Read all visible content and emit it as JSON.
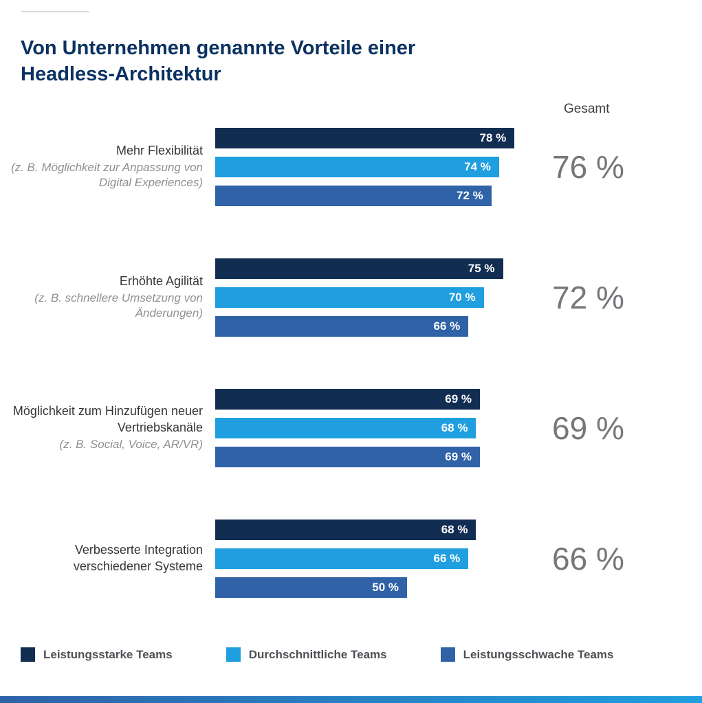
{
  "page": {
    "title": "Von Unternehmen genannte Vorteile einer Headless-Architektur",
    "gesamt_header": "Gesamt"
  },
  "chart_data": {
    "type": "bar",
    "orientation": "horizontal",
    "title": "Von Unternehmen genannte Vorteile einer Headless-Architektur",
    "xlim": [
      0,
      100
    ],
    "legend_position": "bottom",
    "series": [
      "Leistungsstarke Teams",
      "Durchschnittliche Teams",
      "Leistungsschwache Teams"
    ],
    "series_colors": [
      "#122d52",
      "#1f9fdf",
      "#2f62a7"
    ],
    "total_column_label": "Gesamt",
    "groups": [
      {
        "label": "Mehr Flexibilität",
        "sublabel": "(z. B. Möglichkeit zur Anpassung von Digital Experiences)",
        "values": [
          78,
          74,
          72
        ],
        "value_labels": [
          "78 %",
          "74 %",
          "72 %"
        ],
        "total": "76 %"
      },
      {
        "label": "Erhöhte Agilität",
        "sublabel": "(z. B. schnellere Umsetzung von Änderungen)",
        "values": [
          75,
          70,
          66
        ],
        "value_labels": [
          "75 %",
          "70 %",
          "66 %"
        ],
        "total": "72 %"
      },
      {
        "label": "Möglichkeit zum Hinzufügen neuer Vertriebskanäle",
        "sublabel": "(z. B. Social, Voice, AR/VR)",
        "values": [
          69,
          68,
          69
        ],
        "value_labels": [
          "69 %",
          "68 %",
          "69 %"
        ],
        "total": "69 %"
      },
      {
        "label": "Verbesserte Integration verschiedener Systeme",
        "sublabel": "",
        "values": [
          68,
          66,
          50
        ],
        "value_labels": [
          "68 %",
          "66 %",
          "50 %"
        ],
        "total": "66 %"
      }
    ],
    "legend": [
      {
        "label": "Leistungsstarke Teams",
        "color": "#122d52"
      },
      {
        "label": "Durchschnittliche Teams",
        "color": "#1f9fdf"
      },
      {
        "label": "Leistungsschwache Teams",
        "color": "#2f62a7"
      }
    ]
  }
}
